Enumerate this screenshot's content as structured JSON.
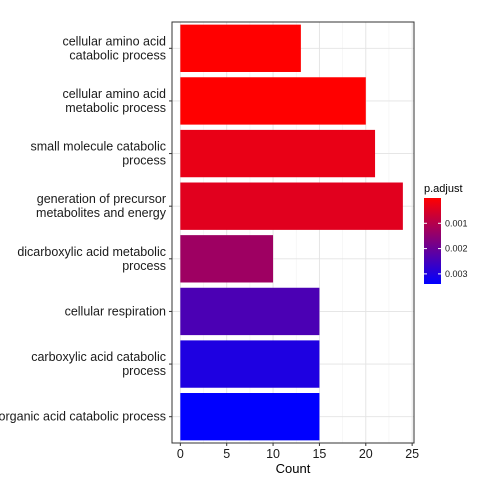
{
  "chart_data": {
    "type": "bar",
    "orientation": "horizontal",
    "categories": [
      [
        "cellular amino acid",
        "catabolic process"
      ],
      [
        "cellular amino acid",
        "metabolic process"
      ],
      [
        "small molecule catabolic",
        "process"
      ],
      [
        "generation of precursor",
        "metabolites and energy"
      ],
      [
        "dicarboxylic acid metabolic",
        "process"
      ],
      [
        "cellular respiration"
      ],
      [
        "carboxylic acid catabolic",
        "process"
      ],
      [
        "organic acid catabolic process"
      ]
    ],
    "values": [
      13,
      20,
      21,
      24,
      10,
      15,
      15,
      15
    ],
    "p_adjust": [
      0.0,
      0.0,
      0.0003,
      0.0004,
      0.0013,
      0.0024,
      0.003,
      0.0034
    ],
    "xlabel": "Count",
    "ylabel": "",
    "xlim": [
      -0.9,
      25.2
    ],
    "xticks": [
      0,
      5,
      10,
      15,
      20,
      25
    ],
    "grid": true,
    "legend": {
      "title": "p.adjust",
      "position": "right",
      "ticks": [
        {
          "value": 0.001,
          "label": "0.001"
        },
        {
          "value": 0.002,
          "label": "0.002"
        },
        {
          "value": 0.003,
          "label": "0.003"
        }
      ],
      "range": [
        0.0,
        0.0034
      ],
      "color_low": "#ff0000",
      "color_high": "#0000ff"
    }
  }
}
